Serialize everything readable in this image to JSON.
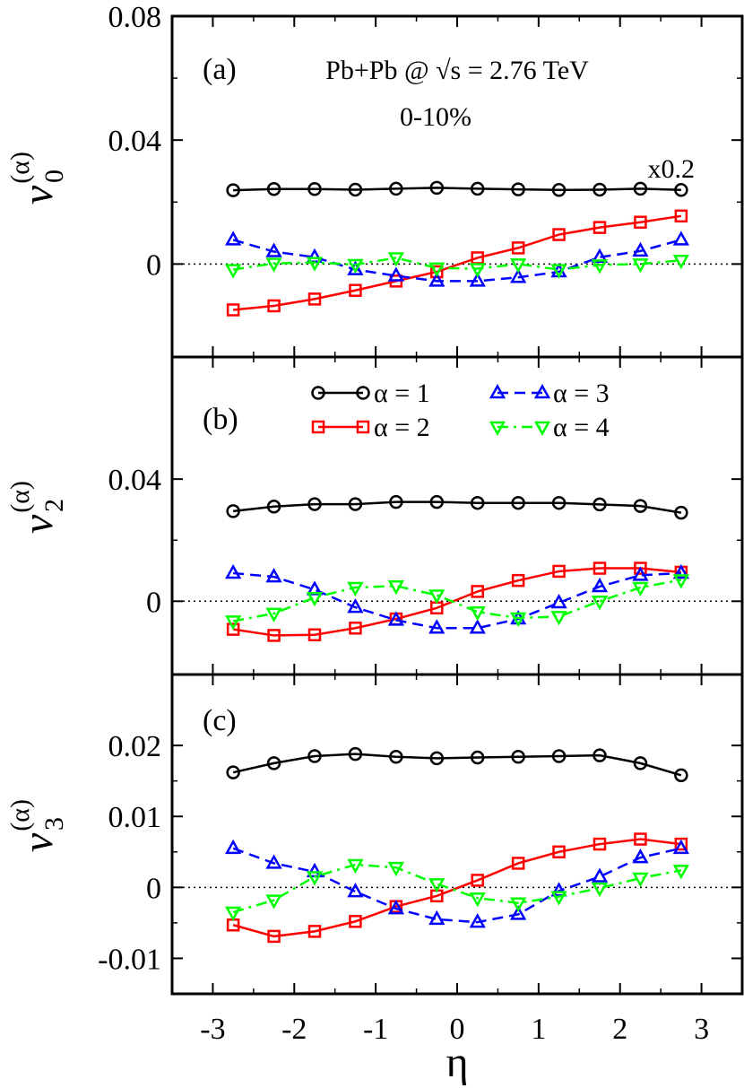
{
  "chart_data": {
    "type": "line",
    "x": [
      -2.75,
      -2.25,
      -1.75,
      -1.25,
      -0.75,
      -0.25,
      0.25,
      0.75,
      1.25,
      1.75,
      2.25,
      2.75
    ],
    "xlim": [
      -3.5,
      3.5
    ],
    "xticks": [
      -3,
      -2,
      -1,
      0,
      1,
      2,
      3
    ],
    "xtick_labels": [
      "-3",
      "-2",
      "-1",
      "0",
      "1",
      "2",
      "3"
    ],
    "xlabel": "η",
    "legend": {
      "entries": [
        "α = 1",
        "α = 2",
        "α = 3",
        "α = 4"
      ],
      "panel": "b",
      "placement": "top"
    },
    "series_styles": [
      {
        "name": "α = 1",
        "color": "#000000",
        "marker": "circle",
        "dash": "solid"
      },
      {
        "name": "α = 2",
        "color": "#ff0000",
        "marker": "square",
        "dash": "solid"
      },
      {
        "name": "α = 3",
        "color": "#0000ff",
        "marker": "triangle-up",
        "dash": "dashed"
      },
      {
        "name": "α = 4",
        "color": "#00ff00",
        "marker": "triangle-down",
        "dash": "dashdot"
      }
    ],
    "panels": [
      {
        "id": "a",
        "panel_label": "(a)",
        "ylabel_main": "v",
        "ylabel_sub": "0",
        "ylabel_sup": "(α)",
        "ylim": [
          -0.03,
          0.08
        ],
        "yticks": [
          0,
          0.04,
          0.08
        ],
        "ytick_labels": [
          "0",
          "0.04",
          "0.08"
        ],
        "annotations": [
          "Pb+Pb @ √s = 2.76 TeV",
          "0-10%",
          "x0.2"
        ],
        "series": [
          {
            "name": "α = 1",
            "values": [
              0.0238,
              0.0242,
              0.0242,
              0.024,
              0.0243,
              0.0246,
              0.0243,
              0.0241,
              0.0239,
              0.024,
              0.0243,
              0.0239
            ]
          },
          {
            "name": "α = 2",
            "values": [
              -0.0148,
              -0.0135,
              -0.0113,
              -0.0085,
              -0.0055,
              -0.0025,
              0.002,
              0.0052,
              0.0095,
              0.0118,
              0.0135,
              0.0155
            ]
          },
          {
            "name": "α = 3",
            "values": [
              0.0078,
              0.004,
              0.0022,
              -0.0018,
              -0.0038,
              -0.0055,
              -0.0055,
              -0.0043,
              -0.0025,
              0.0022,
              0.0042,
              0.0078
            ]
          },
          {
            "name": "α = 4",
            "values": [
              -0.0018,
              0.0002,
              0.0005,
              -0.0002,
              0.002,
              -0.0013,
              -0.0015,
              0.0,
              -0.0018,
              -0.0003,
              0.0,
              0.0012
            ]
          }
        ]
      },
      {
        "id": "b",
        "panel_label": "(b)",
        "ylabel_main": "v",
        "ylabel_sub": "2",
        "ylabel_sup": "(α)",
        "ylim": [
          -0.024,
          0.08
        ],
        "yticks": [
          0,
          0.04
        ],
        "ytick_labels": [
          "0",
          "0.04"
        ],
        "annotations": [],
        "series": [
          {
            "name": "α = 1",
            "values": [
              0.0295,
              0.031,
              0.0318,
              0.0318,
              0.0325,
              0.0325,
              0.0322,
              0.0322,
              0.0322,
              0.0317,
              0.0312,
              0.029
            ]
          },
          {
            "name": "α = 2",
            "values": [
              -0.0092,
              -0.0112,
              -0.011,
              -0.0088,
              -0.0058,
              -0.0022,
              0.0032,
              0.0068,
              0.0098,
              0.0108,
              0.0108,
              0.0095
            ]
          },
          {
            "name": "α = 3",
            "values": [
              0.0092,
              0.008,
              0.0038,
              -0.002,
              -0.0062,
              -0.0088,
              -0.0088,
              -0.0058,
              -0.0005,
              0.0048,
              0.0085,
              0.0092
            ]
          },
          {
            "name": "α = 4",
            "values": [
              -0.0065,
              -0.004,
              0.0012,
              0.0045,
              0.005,
              0.002,
              -0.0035,
              -0.0055,
              -0.005,
              0.0,
              0.0045,
              0.007
            ]
          }
        ]
      },
      {
        "id": "c",
        "panel_label": "(c)",
        "ylabel_main": "v",
        "ylabel_sub": "3",
        "ylabel_sup": "(α)",
        "ylim": [
          -0.015,
          0.03
        ],
        "yticks": [
          -0.01,
          0,
          0.01,
          0.02
        ],
        "ytick_labels": [
          "-0.01",
          "0",
          "0.01",
          "0.02"
        ],
        "annotations": [],
        "series": [
          {
            "name": "α = 1",
            "values": [
              0.0162,
              0.0175,
              0.0185,
              0.0188,
              0.0184,
              0.0182,
              0.0183,
              0.0184,
              0.0185,
              0.0186,
              0.0175,
              0.0158
            ]
          },
          {
            "name": "α = 2",
            "values": [
              -0.0053,
              -0.0069,
              -0.0062,
              -0.0048,
              -0.0027,
              -0.0012,
              0.001,
              0.0034,
              0.005,
              0.0061,
              0.0068,
              0.0061
            ]
          },
          {
            "name": "α = 3",
            "values": [
              0.0055,
              0.0034,
              0.0022,
              -0.0006,
              -0.003,
              -0.0045,
              -0.0049,
              -0.0038,
              -0.0005,
              0.0015,
              0.0042,
              0.0055
            ]
          },
          {
            "name": "α = 4",
            "values": [
              -0.0035,
              -0.0018,
              0.0015,
              0.0032,
              0.0028,
              0.0005,
              -0.0015,
              -0.0022,
              -0.0013,
              -0.0001,
              0.0013,
              0.0024
            ]
          }
        ]
      }
    ]
  }
}
